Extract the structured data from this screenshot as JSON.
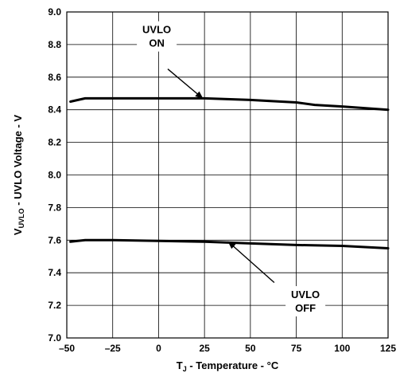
{
  "chart_data": {
    "type": "line",
    "xlabel": {
      "main": "T",
      "sub": "J",
      "rest": " - Temperature - °C"
    },
    "ylabel": {
      "main": "V",
      "sub": "UVLO",
      "rest": " - UVLO Voltage - V"
    },
    "xlim": [
      -50,
      125
    ],
    "ylim": [
      7.0,
      9.0
    ],
    "x_ticks": [
      -50,
      -25,
      0,
      25,
      50,
      75,
      100,
      125
    ],
    "y_ticks": [
      7.0,
      7.2,
      7.4,
      7.6,
      7.8,
      8.0,
      8.2,
      8.4,
      8.6,
      8.8,
      9.0
    ],
    "y_tick_labels": [
      "7.0",
      "7.2",
      "7.4",
      "7.6",
      "7.8",
      "8.0",
      "8.2",
      "8.4",
      "8.6",
      "8.8",
      "9.0"
    ],
    "x_tick_labels": [
      "-50",
      "-25",
      "0",
      "25",
      "50",
      "75",
      "100",
      "125"
    ],
    "grid": true,
    "series": [
      {
        "name": "UVLO ON",
        "x": [
          -48,
          -40,
          -25,
          0,
          25,
          50,
          75,
          85,
          100,
          125
        ],
        "y": [
          8.45,
          8.47,
          8.47,
          8.47,
          8.47,
          8.46,
          8.445,
          8.43,
          8.42,
          8.4
        ]
      },
      {
        "name": "UVLO OFF",
        "x": [
          -48,
          -40,
          -25,
          0,
          25,
          50,
          75,
          100,
          125
        ],
        "y": [
          7.59,
          7.6,
          7.6,
          7.595,
          7.59,
          7.58,
          7.57,
          7.565,
          7.55
        ]
      }
    ],
    "annotations": [
      {
        "lines": [
          "UVLO",
          "ON"
        ],
        "text_x": -1,
        "text_y": 8.85,
        "arrow_from": [
          5,
          8.65
        ],
        "arrow_to": [
          24,
          8.47
        ]
      },
      {
        "lines": [
          "UVLO",
          "OFF"
        ],
        "text_x": 80,
        "text_y": 7.225,
        "arrow_from": [
          63,
          7.34
        ],
        "arrow_to": [
          38,
          7.59
        ]
      }
    ]
  }
}
